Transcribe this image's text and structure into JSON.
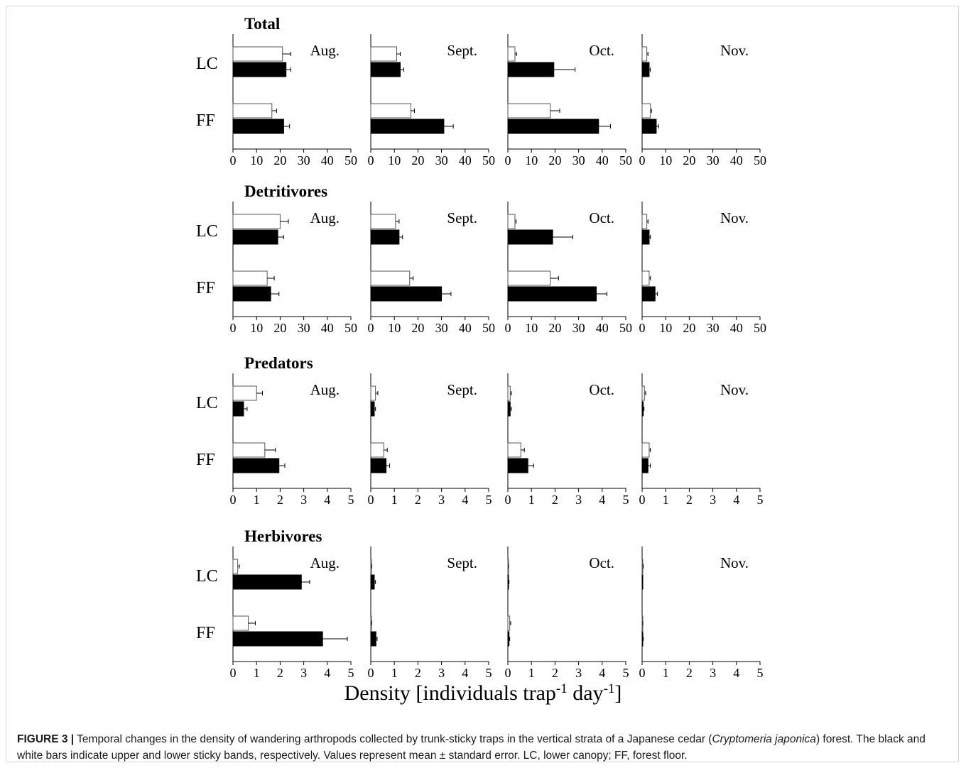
{
  "figure": {
    "x_title_main": "Density [individuals trap",
    "x_title_sup1": "-1",
    "x_title_mid": " day",
    "x_title_sup2": "-1",
    "x_title_end": "]",
    "caption": {
      "label": "FIGURE 3 |",
      "text_before": " Temporal changes in the density of wandering arthropods collected by trunk-sticky traps in the vertical strata of a Japanese cedar (",
      "italic": "Cryptomeria japonica",
      "text_after": ") forest. The black and white bars indicate upper and lower sticky bands, respectively. Values represent mean ± standard error. LC, lower canopy; FF, forest floor."
    }
  },
  "colors": {
    "upper_band": "#000000",
    "lower_band": "#ffffff",
    "axis": "#000000"
  },
  "chart_data": {
    "type": "bar",
    "orientation": "horizontal",
    "months": [
      "Aug.",
      "Sept.",
      "Oct.",
      "Nov."
    ],
    "strata": [
      "LC",
      "FF"
    ],
    "series_names": [
      "lower sticky band (white)",
      "upper sticky band (black)"
    ],
    "groups": [
      {
        "title": "Total",
        "xlim": [
          0,
          50
        ],
        "ticks": [
          "0",
          "10",
          "20",
          "30",
          "40",
          "50"
        ],
        "panels": [
          {
            "LC": {
              "white": [
                21,
                3.5
              ],
              "black": [
                22.5,
                2
              ]
            },
            "FF": {
              "white": [
                16.5,
                2
              ],
              "black": [
                21.5,
                2.5
              ]
            }
          },
          {
            "LC": {
              "white": [
                11,
                1.5
              ],
              "black": [
                12.5,
                1.5
              ]
            },
            "FF": {
              "white": [
                17,
                1.5
              ],
              "black": [
                31,
                4
              ]
            }
          },
          {
            "LC": {
              "white": [
                3,
                0.7
              ],
              "black": [
                19.5,
                9
              ]
            },
            "FF": {
              "white": [
                18,
                4
              ],
              "black": [
                38.5,
                5
              ]
            }
          },
          {
            "LC": {
              "white": [
                2,
                0.5
              ],
              "black": [
                3,
                0.5
              ]
            },
            "FF": {
              "white": [
                3.5,
                0.5
              ],
              "black": [
                6,
                1
              ]
            }
          }
        ]
      },
      {
        "title": "Detritivores",
        "xlim": [
          0,
          50
        ],
        "ticks": [
          "0",
          "10",
          "20",
          "30",
          "40",
          "50"
        ],
        "panels": [
          {
            "LC": {
              "white": [
                20,
                3.5
              ],
              "black": [
                19,
                2.5
              ]
            },
            "FF": {
              "white": [
                14.5,
                3
              ],
              "black": [
                16,
                3.5
              ]
            }
          },
          {
            "LC": {
              "white": [
                10.5,
                1.5
              ],
              "black": [
                12,
                1.5
              ]
            },
            "FF": {
              "white": [
                16.5,
                1.5
              ],
              "black": [
                30,
                4
              ]
            }
          },
          {
            "LC": {
              "white": [
                3,
                0.5
              ],
              "black": [
                19,
                8.5
              ]
            },
            "FF": {
              "white": [
                18,
                3.5
              ],
              "black": [
                37.5,
                4.5
              ]
            }
          },
          {
            "LC": {
              "white": [
                2,
                0.5
              ],
              "black": [
                3,
                0.5
              ]
            },
            "FF": {
              "white": [
                3,
                0.5
              ],
              "black": [
                5.5,
                1
              ]
            }
          }
        ]
      },
      {
        "title": "Predators",
        "xlim": [
          0,
          5
        ],
        "ticks": [
          "0",
          "1",
          "2",
          "3",
          "4",
          "5"
        ],
        "panels": [
          {
            "LC": {
              "white": [
                1,
                0.25
              ],
              "black": [
                0.45,
                0.15
              ]
            },
            "FF": {
              "white": [
                1.35,
                0.45
              ],
              "black": [
                1.95,
                0.25
              ]
            }
          },
          {
            "LC": {
              "white": [
                0.2,
                0.1
              ],
              "black": [
                0.15,
                0.05
              ]
            },
            "FF": {
              "white": [
                0.55,
                0.15
              ],
              "black": [
                0.65,
                0.15
              ]
            }
          },
          {
            "LC": {
              "white": [
                0.1,
                0.05
              ],
              "black": [
                0.1,
                0.05
              ]
            },
            "FF": {
              "white": [
                0.55,
                0.15
              ],
              "black": [
                0.85,
                0.25
              ]
            }
          },
          {
            "LC": {
              "white": [
                0.1,
                0.05
              ],
              "black": [
                0.05,
                0.03
              ]
            },
            "FF": {
              "white": [
                0.3,
                0.05
              ],
              "black": [
                0.25,
                0.1
              ]
            }
          }
        ]
      },
      {
        "title": "Herbivores",
        "xlim": [
          0,
          5
        ],
        "ticks": [
          "0",
          "1",
          "2",
          "3",
          "4",
          "5"
        ],
        "panels": [
          {
            "LC": {
              "white": [
                0.2,
                0.07
              ],
              "black": [
                2.9,
                0.35
              ]
            },
            "FF": {
              "white": [
                0.65,
                0.3
              ],
              "black": [
                3.8,
                1.05
              ]
            }
          },
          {
            "LC": {
              "white": [
                0.02,
                0.02
              ],
              "black": [
                0.15,
                0.05
              ]
            },
            "FF": {
              "white": [
                0.02,
                0.02
              ],
              "black": [
                0.22,
                0.05
              ]
            }
          },
          {
            "LC": {
              "white": [
                0.02,
                0.01
              ],
              "black": [
                0.03,
                0.02
              ]
            },
            "FF": {
              "white": [
                0.08,
                0.04
              ],
              "black": [
                0.05,
                0.03
              ]
            }
          },
          {
            "LC": {
              "white": [
                0.03,
                0.02
              ],
              "black": [
                0.02,
                0.01
              ]
            },
            "FF": {
              "white": [
                0.02,
                0.01
              ],
              "black": [
                0.03,
                0.02
              ]
            }
          }
        ]
      }
    ]
  }
}
